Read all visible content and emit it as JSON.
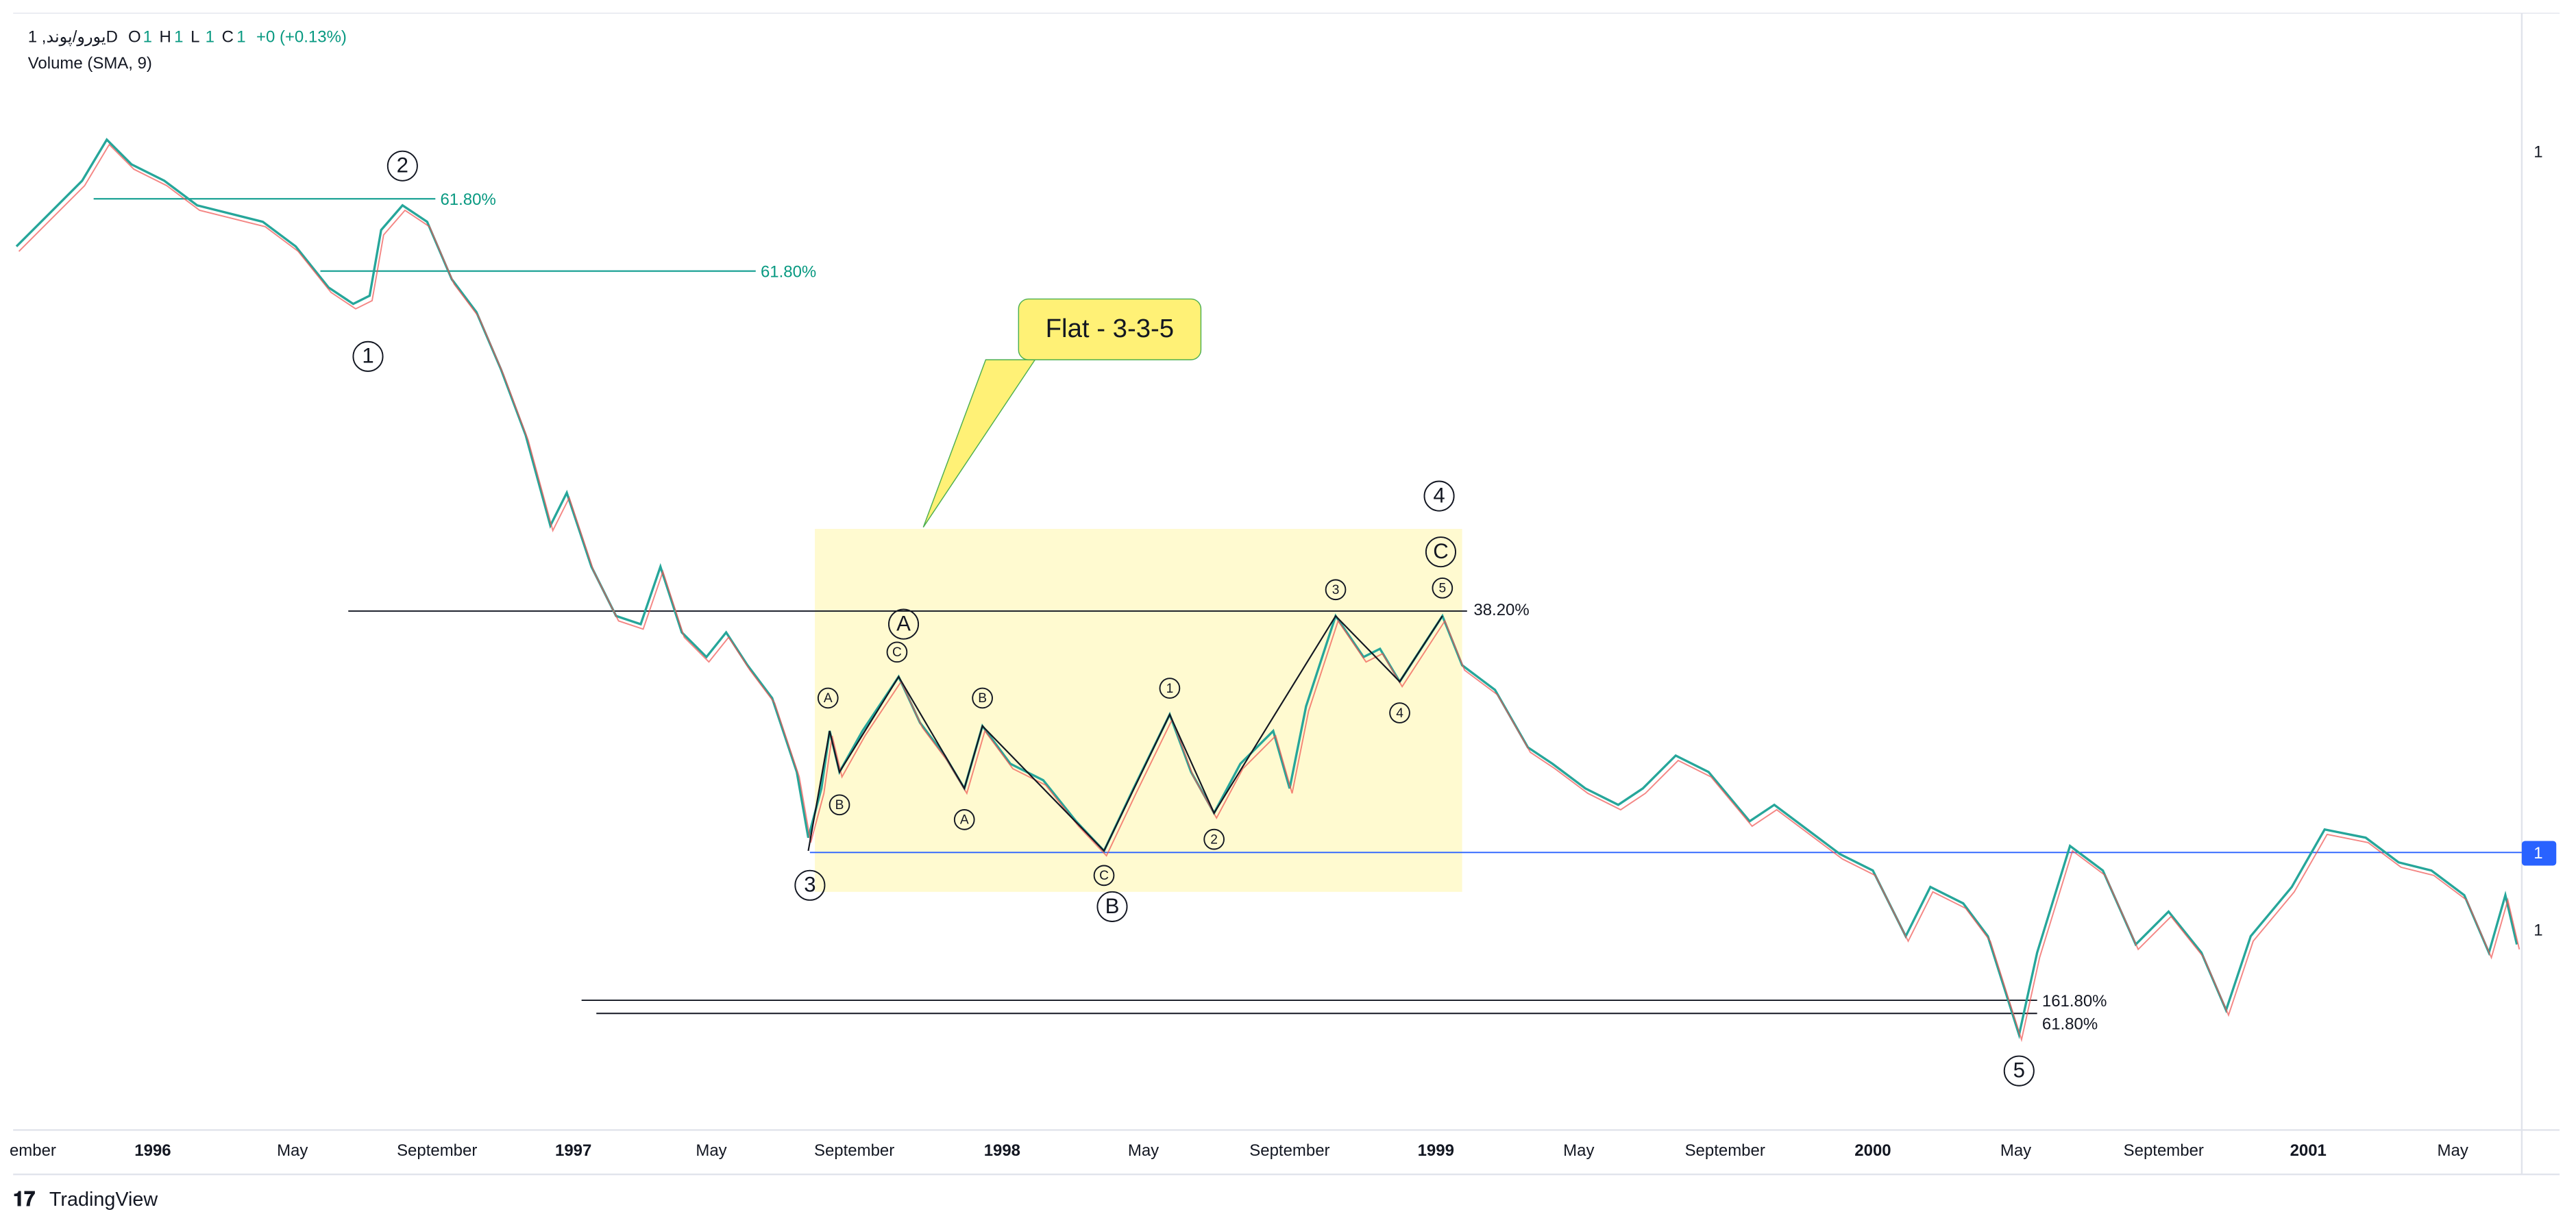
{
  "header": {
    "symbol": "1 ,یورو/پوندD",
    "ohlc": [
      {
        "key": "O",
        "value": "1"
      },
      {
        "key": "H",
        "value": "1"
      },
      {
        "key": "L",
        "value": "1"
      },
      {
        "key": "C",
        "value": "1"
      }
    ],
    "change": "+0 (+0.13%)",
    "indicator": "Volume (SMA, 9)"
  },
  "price_scale": {
    "labels": [
      "1",
      "1",
      "1"
    ]
  },
  "time_axis": {
    "labels": [
      "ember",
      "1996",
      "May",
      "September",
      "1997",
      "May",
      "September",
      "1998",
      "May",
      "September",
      "1999",
      "May",
      "September",
      "2000",
      "May",
      "September",
      "2001",
      "May"
    ]
  },
  "fib_labels": [
    "61.80%",
    "61.80%",
    "38.20%",
    "161.80%",
    "61.80%"
  ],
  "waves_major": [
    "2",
    "1",
    "4",
    "C",
    "A",
    "3",
    "B",
    "5"
  ],
  "waves_minor": [
    "A",
    "B",
    "C",
    "B",
    "A",
    "C",
    "1",
    "2",
    "3",
    "4",
    "5"
  ],
  "callout": "Flat - 3-3-5",
  "footer": {
    "brand": "TradingView"
  }
}
